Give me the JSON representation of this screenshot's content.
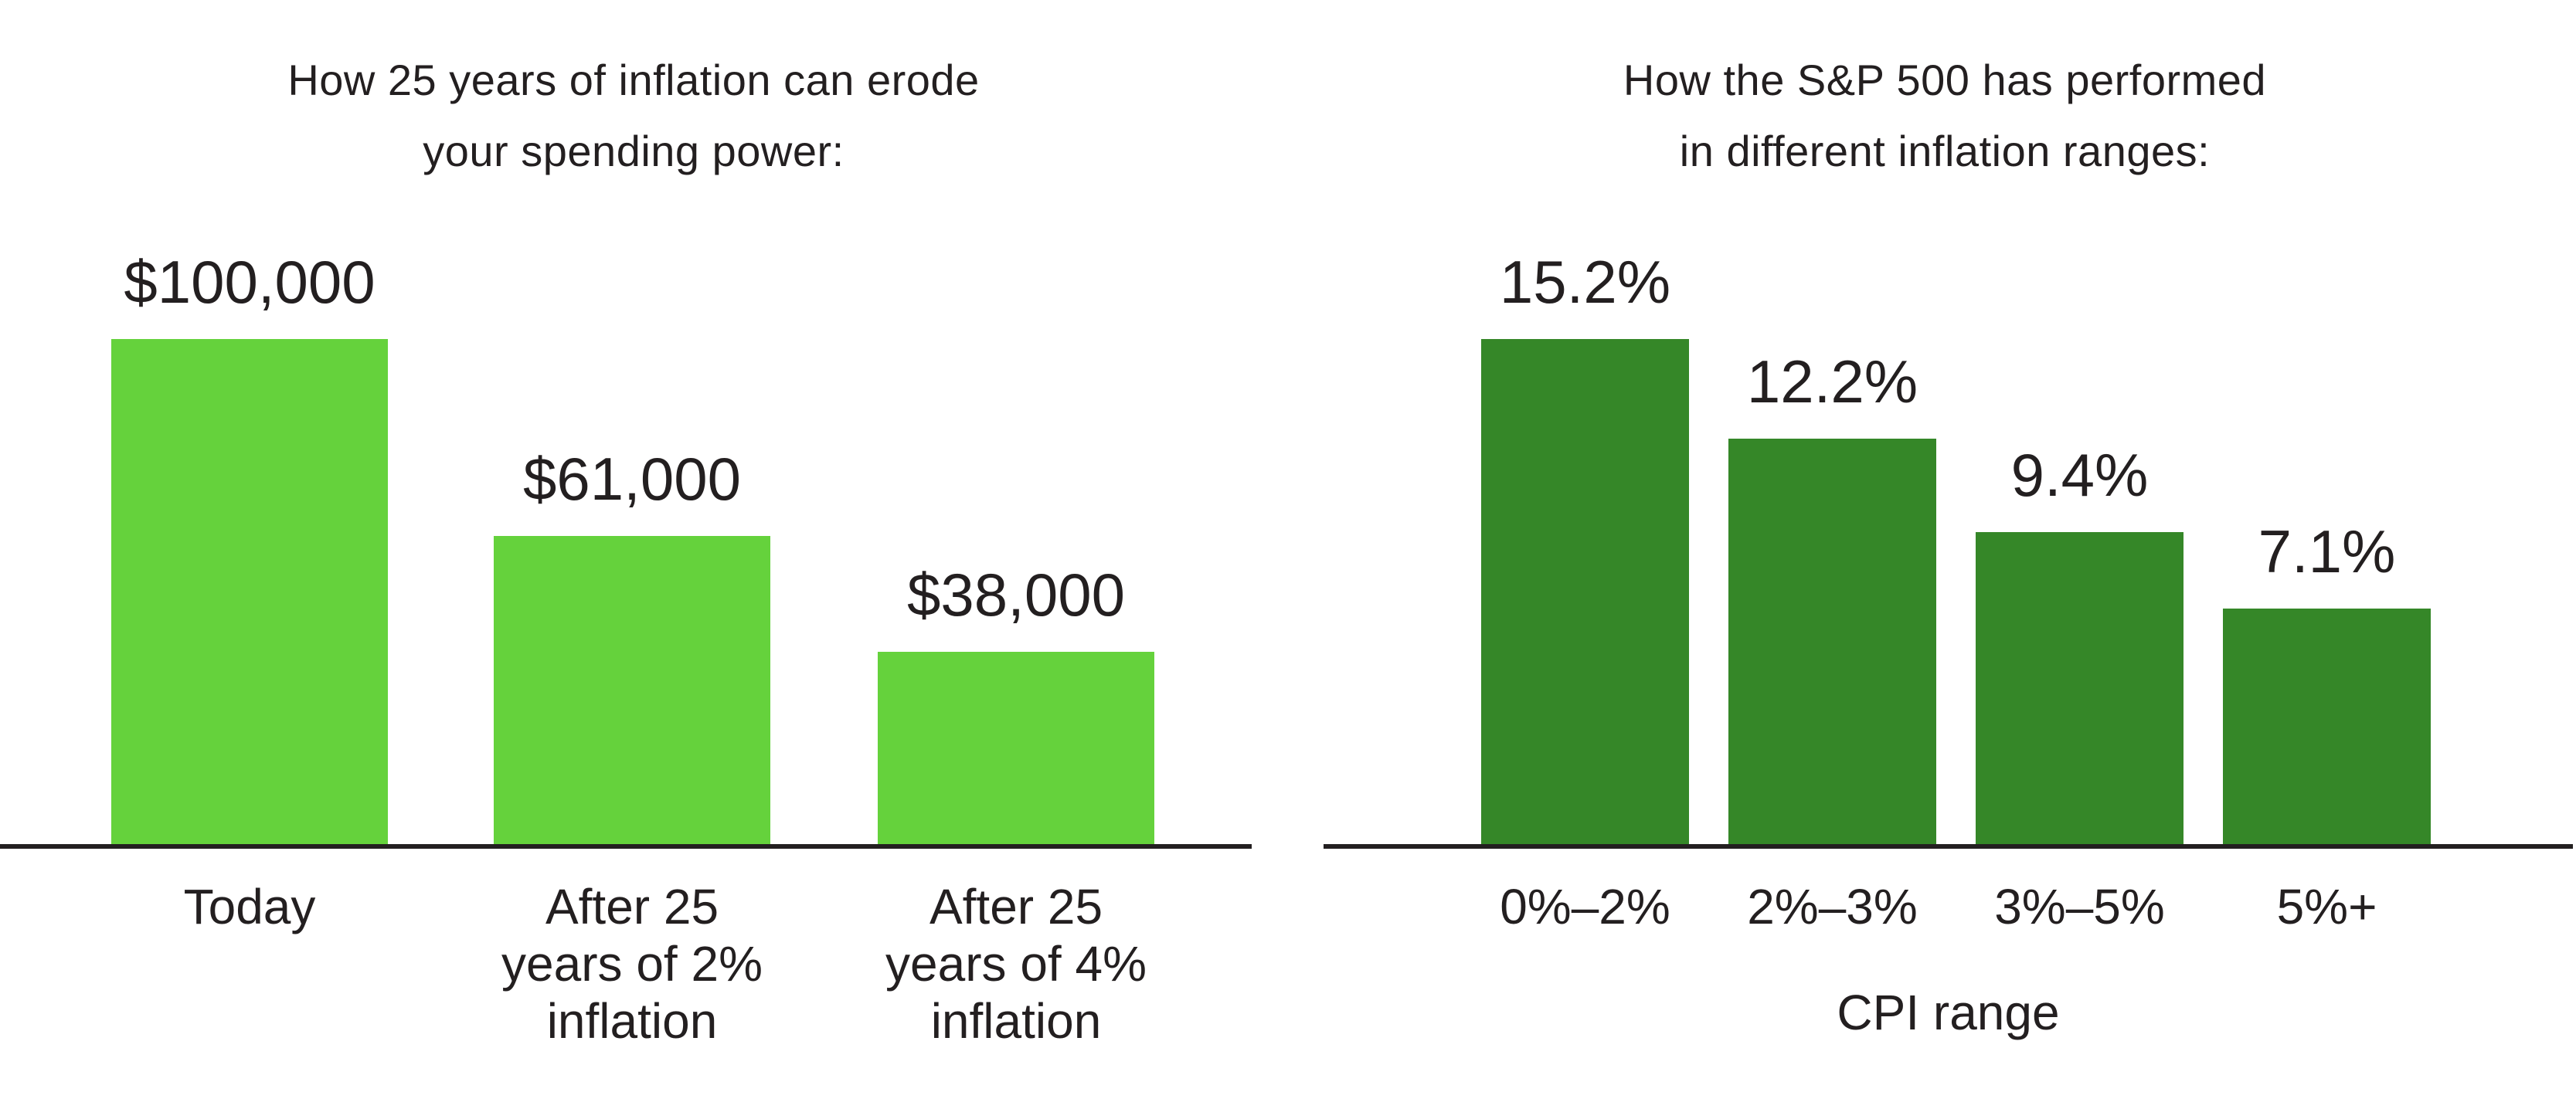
{
  "page": {
    "background": "#ffffff",
    "text_color": "#231f20",
    "axis_color": "#231f20"
  },
  "chart_data": [
    {
      "type": "bar",
      "title": "How 25 years of inflation can erode your spending power:",
      "title_lines": [
        "How 25 years of inflation can erode",
        "your spending power:"
      ],
      "categories": [
        "Today",
        "After 25 years of 2% inflation",
        "After 25 years of 4% inflation"
      ],
      "category_lines": [
        [
          "Today"
        ],
        [
          "After 25",
          "years of 2%",
          "inflation"
        ],
        [
          "After 25",
          "years of 4%",
          "inflation"
        ]
      ],
      "values": [
        100000,
        61000,
        38000
      ],
      "value_labels": [
        "$100,000",
        "$61,000",
        "$38,000"
      ],
      "xlabel": "",
      "ylabel": "",
      "ylim": [
        0,
        100000
      ],
      "grid": false,
      "legend": "none",
      "bar_color": "#65d23c"
    },
    {
      "type": "bar",
      "title": "How the S&P 500 has performed in different inflation ranges:",
      "title_lines": [
        "How the S&P 500 has performed",
        "in different inflation ranges:"
      ],
      "categories": [
        "0%–2%",
        "2%–3%",
        "3%–5%",
        "5%+"
      ],
      "category_lines": [
        [
          "0%–2%"
        ],
        [
          "2%–3%"
        ],
        [
          "3%–5%"
        ],
        [
          "5%+"
        ]
      ],
      "values": [
        15.2,
        12.2,
        9.4,
        7.1
      ],
      "value_labels": [
        "15.2%",
        "12.2%",
        "9.4%",
        "7.1%"
      ],
      "xlabel": "CPI range",
      "ylabel": "",
      "ylim": [
        0,
        15.2
      ],
      "grid": false,
      "legend": "none",
      "bar_color": "#358728"
    }
  ]
}
